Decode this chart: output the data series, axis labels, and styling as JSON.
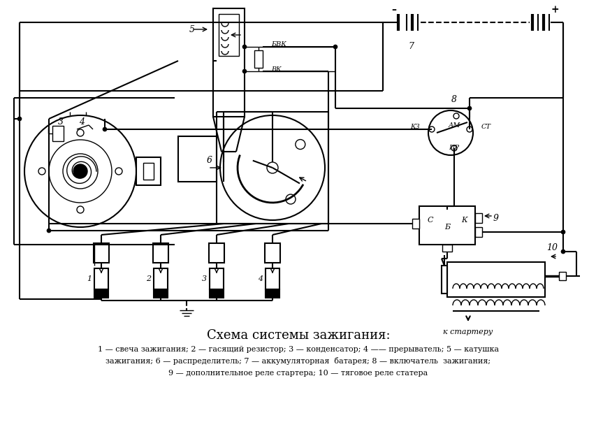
{
  "title": "Схема системы зажигания:",
  "legend_line1": "1 — свеча зажигания; 2 — гасящий резистор; 3 — конденсатор; 4 —— прерыватель; 5 — катушка",
  "legend_line2": "зажигания; 6 — распределитель; 7 — аккумуляторная  батарея; 8 — включатель  зажигания;",
  "legend_line3": "9 — дополнительное реле стартера; 10 — тяговое реле статера",
  "bg_color": "#ffffff",
  "line_color": "#000000",
  "fig_width": 8.54,
  "fig_height": 6.11
}
